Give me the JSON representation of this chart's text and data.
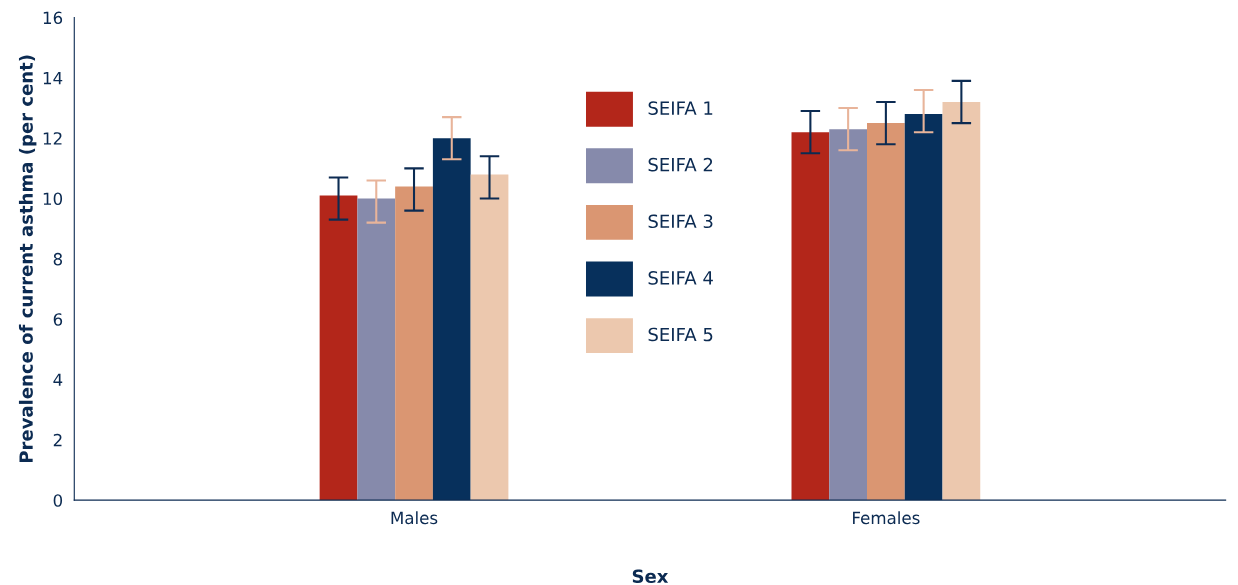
{
  "chart_data": {
    "type": "bar",
    "xlabel": "Sex",
    "ylabel": "Prevalence of current asthma (per cent)",
    "categories": [
      "Males",
      "Females"
    ],
    "series": [
      {
        "name": "SEIFA 1",
        "color": "#b3261a",
        "values": [
          10.1,
          12.2
        ],
        "errors": [
          [
            9.3,
            10.7
          ],
          [
            11.5,
            12.9
          ]
        ]
      },
      {
        "name": "SEIFA 2",
        "color": "#868aab",
        "values": [
          10.0,
          12.3
        ],
        "errors": [
          [
            9.2,
            10.6
          ],
          [
            11.6,
            13.0
          ]
        ]
      },
      {
        "name": "SEIFA 3",
        "color": "#da9672",
        "values": [
          10.4,
          12.5
        ],
        "errors": [
          [
            9.6,
            11.0
          ],
          [
            11.8,
            13.2
          ]
        ]
      },
      {
        "name": "SEIFA 4",
        "color": "#07305c",
        "values": [
          12.0,
          12.8
        ],
        "errors": [
          [
            11.3,
            12.7
          ],
          [
            12.2,
            13.6
          ]
        ]
      },
      {
        "name": "SEIFA 5",
        "color": "#ecc8ae",
        "values": [
          10.8,
          13.2
        ],
        "errors": [
          [
            10.0,
            11.4
          ],
          [
            12.5,
            13.9
          ]
        ]
      }
    ],
    "ylim": [
      0,
      16
    ],
    "yticks": [
      0,
      2,
      4,
      6,
      8,
      10,
      12,
      14,
      16
    ],
    "grid": false,
    "legend": "top"
  }
}
